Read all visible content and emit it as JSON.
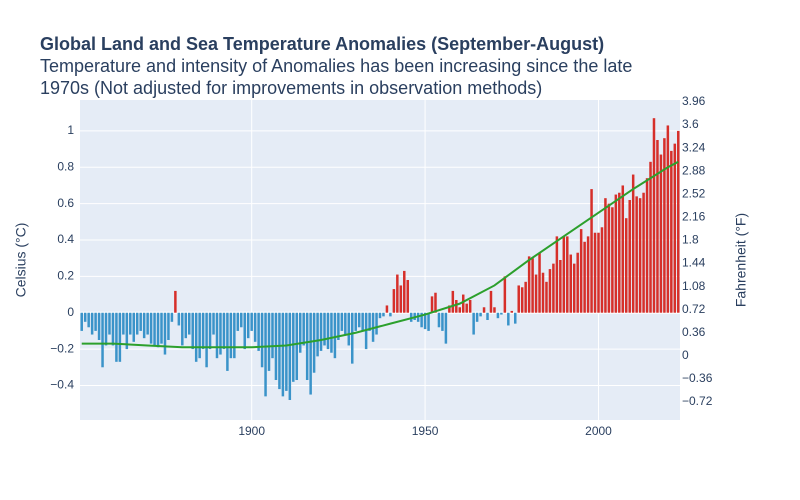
{
  "chart_data": {
    "type": "bar",
    "title": "Global Land and Sea Temperature Anomalies (September-August)",
    "subtitle": [
      "Temperature and intensity of Anomalies has been increasing since the late",
      "1970s (Not adjusted for improvements in observation methods)"
    ],
    "y_label": "Celsius (°C)",
    "y2_label": "Fahrenheit (°F)",
    "positive_color": "#d62f2a",
    "negative_color": "#3a93c9",
    "grid": true,
    "xlim": [
      1850.5,
      2023.5
    ],
    "xticks": [
      1900,
      1950,
      2000
    ],
    "ylim": [
      -0.59,
      1.17
    ],
    "yticks": [
      {
        "value": -0.4,
        "label": "−0.4"
      },
      {
        "value": -0.2,
        "label": "−0.2"
      },
      0,
      0.2,
      0.4,
      0.6,
      0.8,
      1
    ],
    "y2lim": [
      -1.0,
      3.99
    ],
    "y2ticks": [
      {
        "value": -0.72,
        "label": "−0.72"
      },
      {
        "value": -0.36,
        "label": "−0.36"
      },
      0,
      0.36,
      0.72,
      1.08,
      1.44,
      1.8,
      2.16,
      2.52,
      2.88,
      3.24,
      3.6,
      3.96
    ],
    "x": [
      1851,
      1852,
      1853,
      1854,
      1855,
      1856,
      1857,
      1858,
      1859,
      1860,
      1861,
      1862,
      1863,
      1864,
      1865,
      1866,
      1867,
      1868,
      1869,
      1870,
      1871,
      1872,
      1873,
      1874,
      1875,
      1876,
      1877,
      1878,
      1879,
      1880,
      1881,
      1882,
      1883,
      1884,
      1885,
      1886,
      1887,
      1888,
      1889,
      1890,
      1891,
      1892,
      1893,
      1894,
      1895,
      1896,
      1897,
      1898,
      1899,
      1900,
      1901,
      1902,
      1903,
      1904,
      1905,
      1906,
      1907,
      1908,
      1909,
      1910,
      1911,
      1912,
      1913,
      1914,
      1915,
      1916,
      1917,
      1918,
      1919,
      1920,
      1921,
      1922,
      1923,
      1924,
      1925,
      1926,
      1927,
      1928,
      1929,
      1930,
      1931,
      1932,
      1933,
      1934,
      1935,
      1936,
      1937,
      1938,
      1939,
      1940,
      1941,
      1942,
      1943,
      1944,
      1945,
      1946,
      1947,
      1948,
      1949,
      1950,
      1951,
      1952,
      1953,
      1954,
      1955,
      1956,
      1957,
      1958,
      1959,
      1960,
      1961,
      1962,
      1963,
      1964,
      1965,
      1966,
      1967,
      1968,
      1969,
      1970,
      1971,
      1972,
      1973,
      1974,
      1975,
      1976,
      1977,
      1978,
      1979,
      1980,
      1981,
      1982,
      1983,
      1984,
      1985,
      1986,
      1987,
      1988,
      1989,
      1990,
      1991,
      1992,
      1993,
      1994,
      1995,
      1996,
      1997,
      1998,
      1999,
      2000,
      2001,
      2002,
      2003,
      2004,
      2005,
      2006,
      2007,
      2008,
      2009,
      2010,
      2011,
      2012,
      2013,
      2014,
      2015,
      2016,
      2017,
      2018,
      2019,
      2020,
      2021,
      2022,
      2023
    ],
    "values": [
      -0.1,
      -0.05,
      -0.08,
      -0.12,
      -0.1,
      -0.15,
      -0.3,
      -0.18,
      -0.12,
      -0.18,
      -0.27,
      -0.27,
      -0.12,
      -0.2,
      -0.12,
      -0.16,
      -0.12,
      -0.1,
      -0.14,
      -0.12,
      -0.17,
      -0.18,
      -0.19,
      -0.17,
      -0.23,
      -0.15,
      -0.05,
      0.12,
      -0.07,
      -0.18,
      -0.14,
      -0.12,
      -0.2,
      -0.27,
      -0.25,
      -0.2,
      -0.3,
      -0.2,
      -0.12,
      -0.25,
      -0.23,
      -0.2,
      -0.32,
      -0.25,
      -0.25,
      -0.1,
      -0.08,
      -0.2,
      -0.14,
      -0.1,
      -0.16,
      -0.21,
      -0.3,
      -0.46,
      -0.32,
      -0.25,
      -0.37,
      -0.42,
      -0.46,
      -0.43,
      -0.48,
      -0.38,
      -0.37,
      -0.22,
      -0.18,
      -0.37,
      -0.45,
      -0.33,
      -0.24,
      -0.21,
      -0.18,
      -0.2,
      -0.22,
      -0.25,
      -0.15,
      -0.1,
      -0.12,
      -0.18,
      -0.28,
      -0.1,
      -0.08,
      -0.1,
      -0.2,
      -0.1,
      -0.16,
      -0.12,
      -0.03,
      -0.02,
      0.04,
      -0.02,
      0.13,
      0.21,
      0.15,
      0.23,
      0.18,
      -0.05,
      -0.04,
      -0.05,
      -0.08,
      -0.09,
      -0.1,
      0.09,
      0.11,
      -0.08,
      -0.1,
      -0.17,
      0.04,
      0.12,
      0.07,
      0.03,
      0.1,
      0.05,
      0.07,
      -0.12,
      -0.05,
      -0.02,
      0.03,
      -0.04,
      0.12,
      0.03,
      -0.03,
      -0.01,
      0.2,
      -0.07,
      0.01,
      -0.06,
      0.15,
      0.14,
      0.17,
      0.31,
      0.3,
      0.21,
      0.33,
      0.22,
      0.17,
      0.24,
      0.27,
      0.42,
      0.29,
      0.42,
      0.42,
      0.32,
      0.27,
      0.33,
      0.46,
      0.39,
      0.42,
      0.68,
      0.44,
      0.44,
      0.47,
      0.63,
      0.6,
      0.58,
      0.65,
      0.66,
      0.7,
      0.52,
      0.62,
      0.76,
      0.64,
      0.63,
      0.66,
      0.74,
      0.83,
      1.07,
      0.95,
      0.87,
      0.96,
      1.03,
      0.89,
      0.93,
      1.0
    ],
    "trend": {
      "color": "#2ca02c",
      "x": [
        1851,
        1860,
        1870,
        1880,
        1890,
        1900,
        1910,
        1920,
        1930,
        1940,
        1950,
        1960,
        1970,
        1980,
        1990,
        2000,
        2010,
        2020,
        2023
      ],
      "values": [
        -0.17,
        -0.17,
        -0.18,
        -0.19,
        -0.19,
        -0.19,
        -0.18,
        -0.15,
        -0.11,
        -0.06,
        -0.01,
        0.05,
        0.15,
        0.29,
        0.42,
        0.55,
        0.68,
        0.8,
        0.83
      ]
    }
  }
}
